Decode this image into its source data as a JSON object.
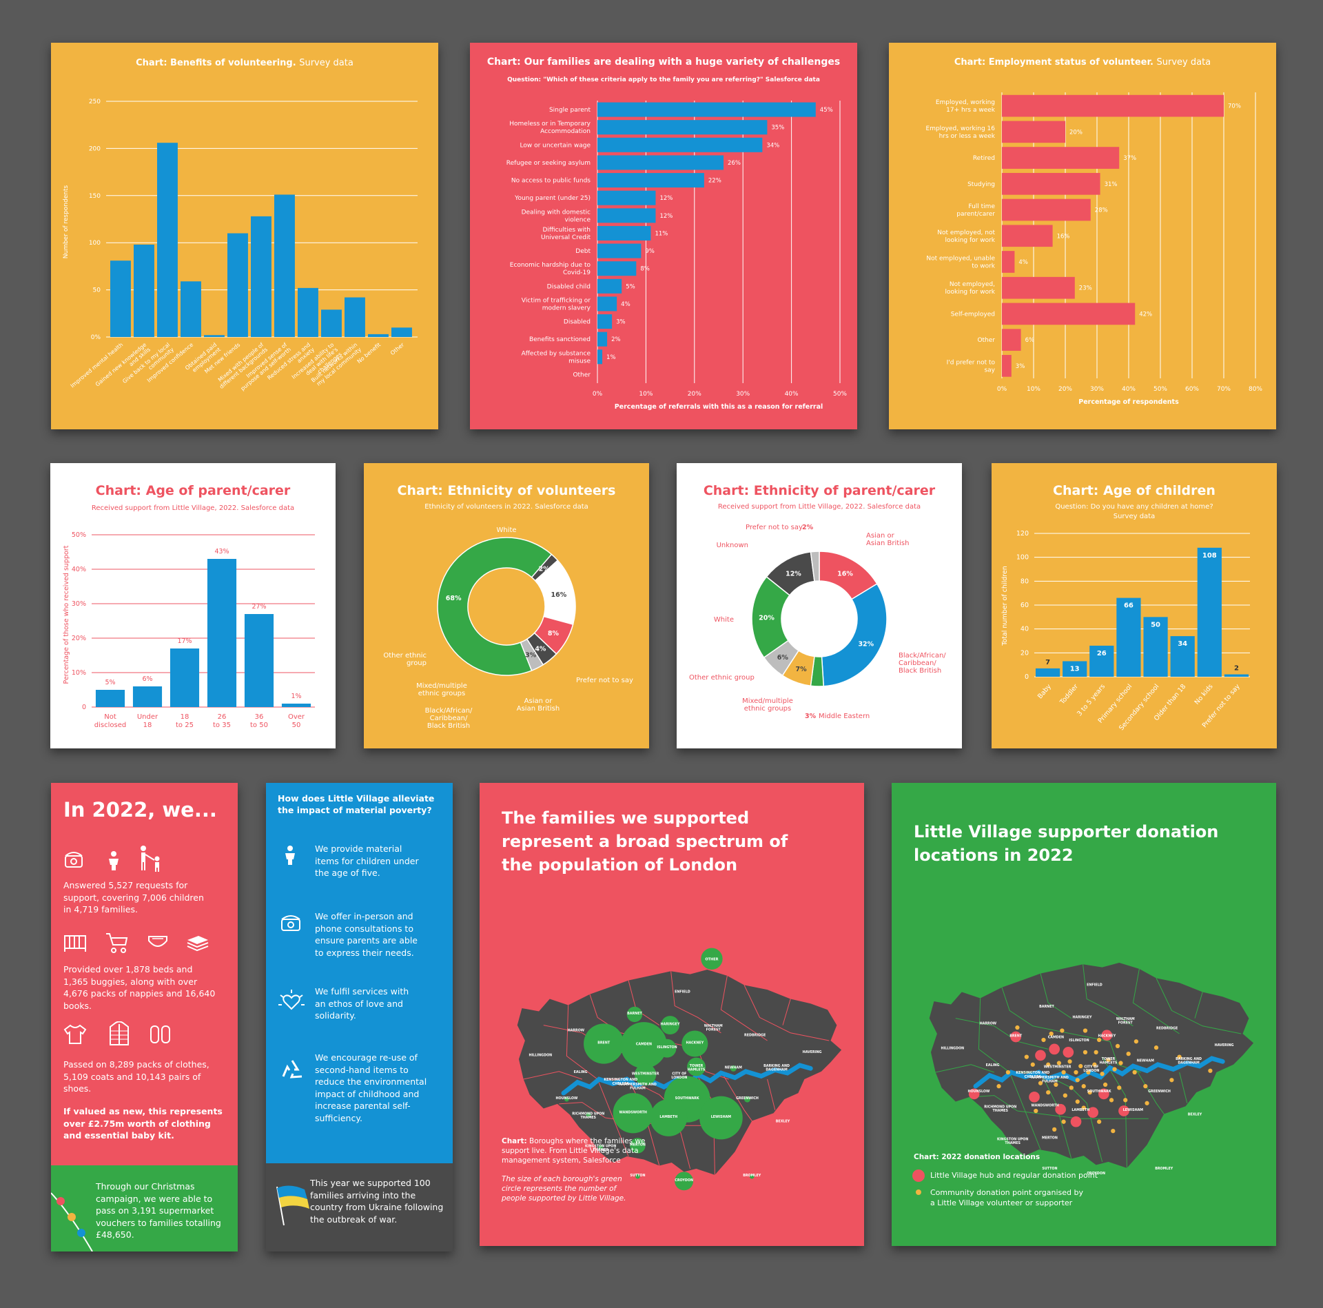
{
  "colors": {
    "yellow": "#F2B441",
    "red": "#EE5360",
    "blue": "#1492D4",
    "green": "#35A847",
    "dark": "#4A4A4A",
    "white": "#FFFFFF"
  },
  "chart_data": [
    {
      "id": "benefits",
      "type": "bar",
      "title": "Chart: Benefits of volunteering.",
      "subtitle": "Survey data",
      "ylabel": "Number of respondents",
      "ylim": [
        0,
        250
      ],
      "yticks": [
        "0%",
        "50",
        "100",
        "150",
        "200",
        "250"
      ],
      "categories": [
        "Improved mental health",
        "Gained new knowledge and skills",
        "Give back to my local community",
        "Improved confidence",
        "Obtained paid employment",
        "Met new friends",
        "Mixed with people of different backgrounds",
        "Improved sense of purpose and self-worth",
        "Reduced stress and anxiety",
        "Increased ability to deal with life's challenges",
        "Built networks within my local community",
        "No benefit",
        "Other"
      ],
      "values": [
        81,
        98,
        206,
        59,
        2,
        110,
        128,
        151,
        52,
        29,
        42,
        3,
        10
      ]
    },
    {
      "id": "challenges",
      "type": "bar",
      "orientation": "horizontal",
      "title": "Chart: Our families are dealing with a huge variety of challenges",
      "subtitle": "Question: \"Which of these criteria apply to the family you are referring?\" Salesforce data",
      "xlabel": "Percentage of referrals with this as a reason for referral",
      "xlim": [
        0,
        50
      ],
      "xticks": [
        "0%",
        "10%",
        "20%",
        "30%",
        "40%",
        "50%"
      ],
      "categories": [
        "Single parent",
        "Homeless or in Temporary Accommodation",
        "Low or uncertain wage",
        "Refugee or seeking asylum",
        "No access to public funds",
        "Young parent (under 25)",
        "Dealing with domestic violence",
        "Difficulties with Universal Credit",
        "Debt",
        "Economic hardship due to Covid-19",
        "Disabled child",
        "Victim of trafficking or modern slavery",
        "Disabled",
        "Benefits sanctioned",
        "Affected by substance misuse",
        "Other"
      ],
      "values": [
        45,
        35,
        34,
        26,
        22,
        12,
        12,
        11,
        9,
        8,
        5,
        4,
        3,
        2,
        1,
        0
      ],
      "labels": [
        "45%",
        "35%",
        "34%",
        "26%",
        "22%",
        "12%",
        "12%",
        "11%",
        "9%",
        "8%",
        "5%",
        "4%",
        "3%",
        "2%",
        "1%",
        ""
      ]
    },
    {
      "id": "employment",
      "type": "bar",
      "orientation": "horizontal",
      "title": "Chart: Employment status of volunteer.",
      "subtitle": "Survey data",
      "xlabel": "Percentage of respondents",
      "xlim": [
        0,
        80
      ],
      "xticks": [
        "0%",
        "10%",
        "20%",
        "30%",
        "40%",
        "50%",
        "60%",
        "70%",
        "80%"
      ],
      "categories": [
        "Employed, working 17+ hrs a week",
        "Employed, working 16 hrs or less a week",
        "Retired",
        "Studying",
        "Full time parent/carer",
        "Not employed, not looking for work",
        "Not employed, unable to work",
        "Not employed, looking for work",
        "Self-employed",
        "Other",
        "I'd prefer not to say"
      ],
      "values": [
        70,
        20,
        37,
        31,
        28,
        16,
        4,
        23,
        42,
        6,
        3
      ],
      "labels": [
        "70%",
        "20%",
        "37%",
        "31%",
        "28%",
        "16%",
        "4%",
        "23%",
        "42%",
        "6%",
        "3%"
      ]
    },
    {
      "id": "age_parent",
      "type": "bar",
      "title": "Chart: Age of parent/carer",
      "subtitle": "Received support from Little Village, 2022. Salesforce data",
      "ylabel": "Percentage of those who received support",
      "ylim": [
        0,
        50
      ],
      "yticks": [
        "0",
        "10%",
        "20%",
        "30%",
        "40%",
        "50%"
      ],
      "categories": [
        "Not disclosed",
        "Under 18",
        "18 to 25",
        "26 to 35",
        "36 to 50",
        "Over 50"
      ],
      "values": [
        5,
        6,
        17,
        43,
        27,
        1
      ],
      "labels": [
        "5%",
        "6%",
        "17%",
        "43%",
        "27%",
        "1%"
      ]
    },
    {
      "id": "eth_vol",
      "type": "pie",
      "variant": "donut",
      "title": "Chart: Ethnicity of volunteers",
      "subtitle": "Ethnicity of volunteers in 2022. Salesforce data",
      "slices": [
        {
          "label": "White",
          "value": 68,
          "color": "#35A847"
        },
        {
          "label": "Prefer not to say",
          "value": 2,
          "color": "#4A4A4A"
        },
        {
          "label": "Asian or Asian British",
          "value": 16,
          "color": "#FFFFFF"
        },
        {
          "label": "Black/African/ Caribbean/ Black British",
          "value": 8,
          "color": "#EE5360"
        },
        {
          "label": "Mixed/multiple ethnic groups",
          "value": 4,
          "color": "#4A4A4A"
        },
        {
          "label": "Other ethnic group",
          "value": 3,
          "color": "#BDBDBD"
        }
      ]
    },
    {
      "id": "eth_parent",
      "type": "pie",
      "variant": "donut",
      "title": "Chart: Ethnicity of parent/carer",
      "subtitle": "Received support from Little Village, 2022. Salesforce data",
      "slices": [
        {
          "label": "Asian or Asian British",
          "value": 16,
          "color": "#EE5360"
        },
        {
          "label": "Black/African/ Caribbean/ Black British",
          "value": 32,
          "color": "#1492D4"
        },
        {
          "label": "Middle Eastern",
          "value": 3,
          "color": "#35A847"
        },
        {
          "label": "Mixed/multiple ethnic groups",
          "value": 7,
          "color": "#F2B441"
        },
        {
          "label": "Other ethnic group",
          "value": 6,
          "color": "#BDBDBD"
        },
        {
          "label": "White",
          "value": 20,
          "color": "#35A847"
        },
        {
          "label": "Unknown",
          "value": 12,
          "color": "#4A4A4A"
        },
        {
          "label": "Prefer not to say",
          "value": 2,
          "color": "#BDBDBD"
        }
      ]
    },
    {
      "id": "age_children",
      "type": "bar",
      "title": "Chart: Age of children",
      "subtitle": "Question: Do you have any children at home? Survey data",
      "ylabel": "Total number of children",
      "ylim": [
        0,
        120
      ],
      "yticks": [
        "0",
        "20",
        "40",
        "60",
        "80",
        "100",
        "120"
      ],
      "categories": [
        "Baby",
        "Toddler",
        "3 to 5 years",
        "Primary school",
        "Secondary school",
        "Older than 18",
        "No kids",
        "Prefer not to say"
      ],
      "values": [
        7,
        13,
        26,
        66,
        50,
        34,
        108,
        2
      ]
    }
  ],
  "in2022": {
    "title": "In 2022, we...",
    "p1": "Answered 5,527 requests for support, covering 7,006 children in 4,719 families.",
    "p2": "Provided over 1,878 beds and 1,365 buggies, along with over 4,676 packs of nappies and 16,640 books.",
    "p3": "Passed on 8,289 packs of clothes, 5,109 coats and 10,143 pairs of shoes.",
    "p4": "If valued as new, this represents over £2.75m worth of clothing and essential baby kit.",
    "christmas": "Through our Christmas campaign, we were able to pass on 3,191 supermarket vouchers to families totalling £48,650."
  },
  "poverty": {
    "title": "How does Little Village alleviate the impact of material poverty?",
    "i1": "We provide material items for children under the age of five.",
    "i2": "We offer in-person and phone consultations to ensure parents are able to express their needs.",
    "i3": "We fulfil services with an ethos of love and solidarity.",
    "i4": "We encourage re-use of second-hand items to reduce the environmental impact of childhood and increase parental self-sufficiency.",
    "ukraine": "This year we supported 100 families arriving into the country from Ukraine following the outbreak of war."
  },
  "map1": {
    "title": "The families we supported represent a broad spectrum of the population of London",
    "cap1_b": "Chart:",
    "cap1": "Boroughs where the families we support live. From Little Village's data management system, Salesforce",
    "cap2": "The size of each borough's green circle represents the number of people supported by Little Village.",
    "other": "OTHER",
    "boroughs": [
      "ENFIELD",
      "BARNET",
      "HARINGEY",
      "WALTHAM FOREST",
      "HARROW",
      "BRENT",
      "CAMDEN",
      "HACKNEY",
      "REDBRIDGE",
      "HAVERING",
      "HILLINGDON",
      "ISLINGTON",
      "TOWER HAMLETS",
      "NEWHAM",
      "BARKING AND DAGENHAM",
      "EALING",
      "KENSINGTON AND CHELSEA",
      "HAMMERSMITH AND FULHAM",
      "WESTMINSTER",
      "CITY OF LONDON",
      "HOUNSLOW",
      "SOUTHWARK",
      "GREENWICH",
      "RICHMOND UPON THAMES",
      "WANDSWORTH",
      "LAMBETH",
      "LEWISHAM",
      "BEXLEY",
      "KINGSTON UPON THAMES",
      "MERTON",
      "SUTTON",
      "CROYDON",
      "BROMLEY"
    ]
  },
  "map2": {
    "title": "Little Village supporter donation locations in 2022",
    "chart": "Chart: 2022 donation locations",
    "leg1": "Little Village hub and regular donation point",
    "leg2": "Community donation point organised by a Little Village volunteer or supporter"
  }
}
